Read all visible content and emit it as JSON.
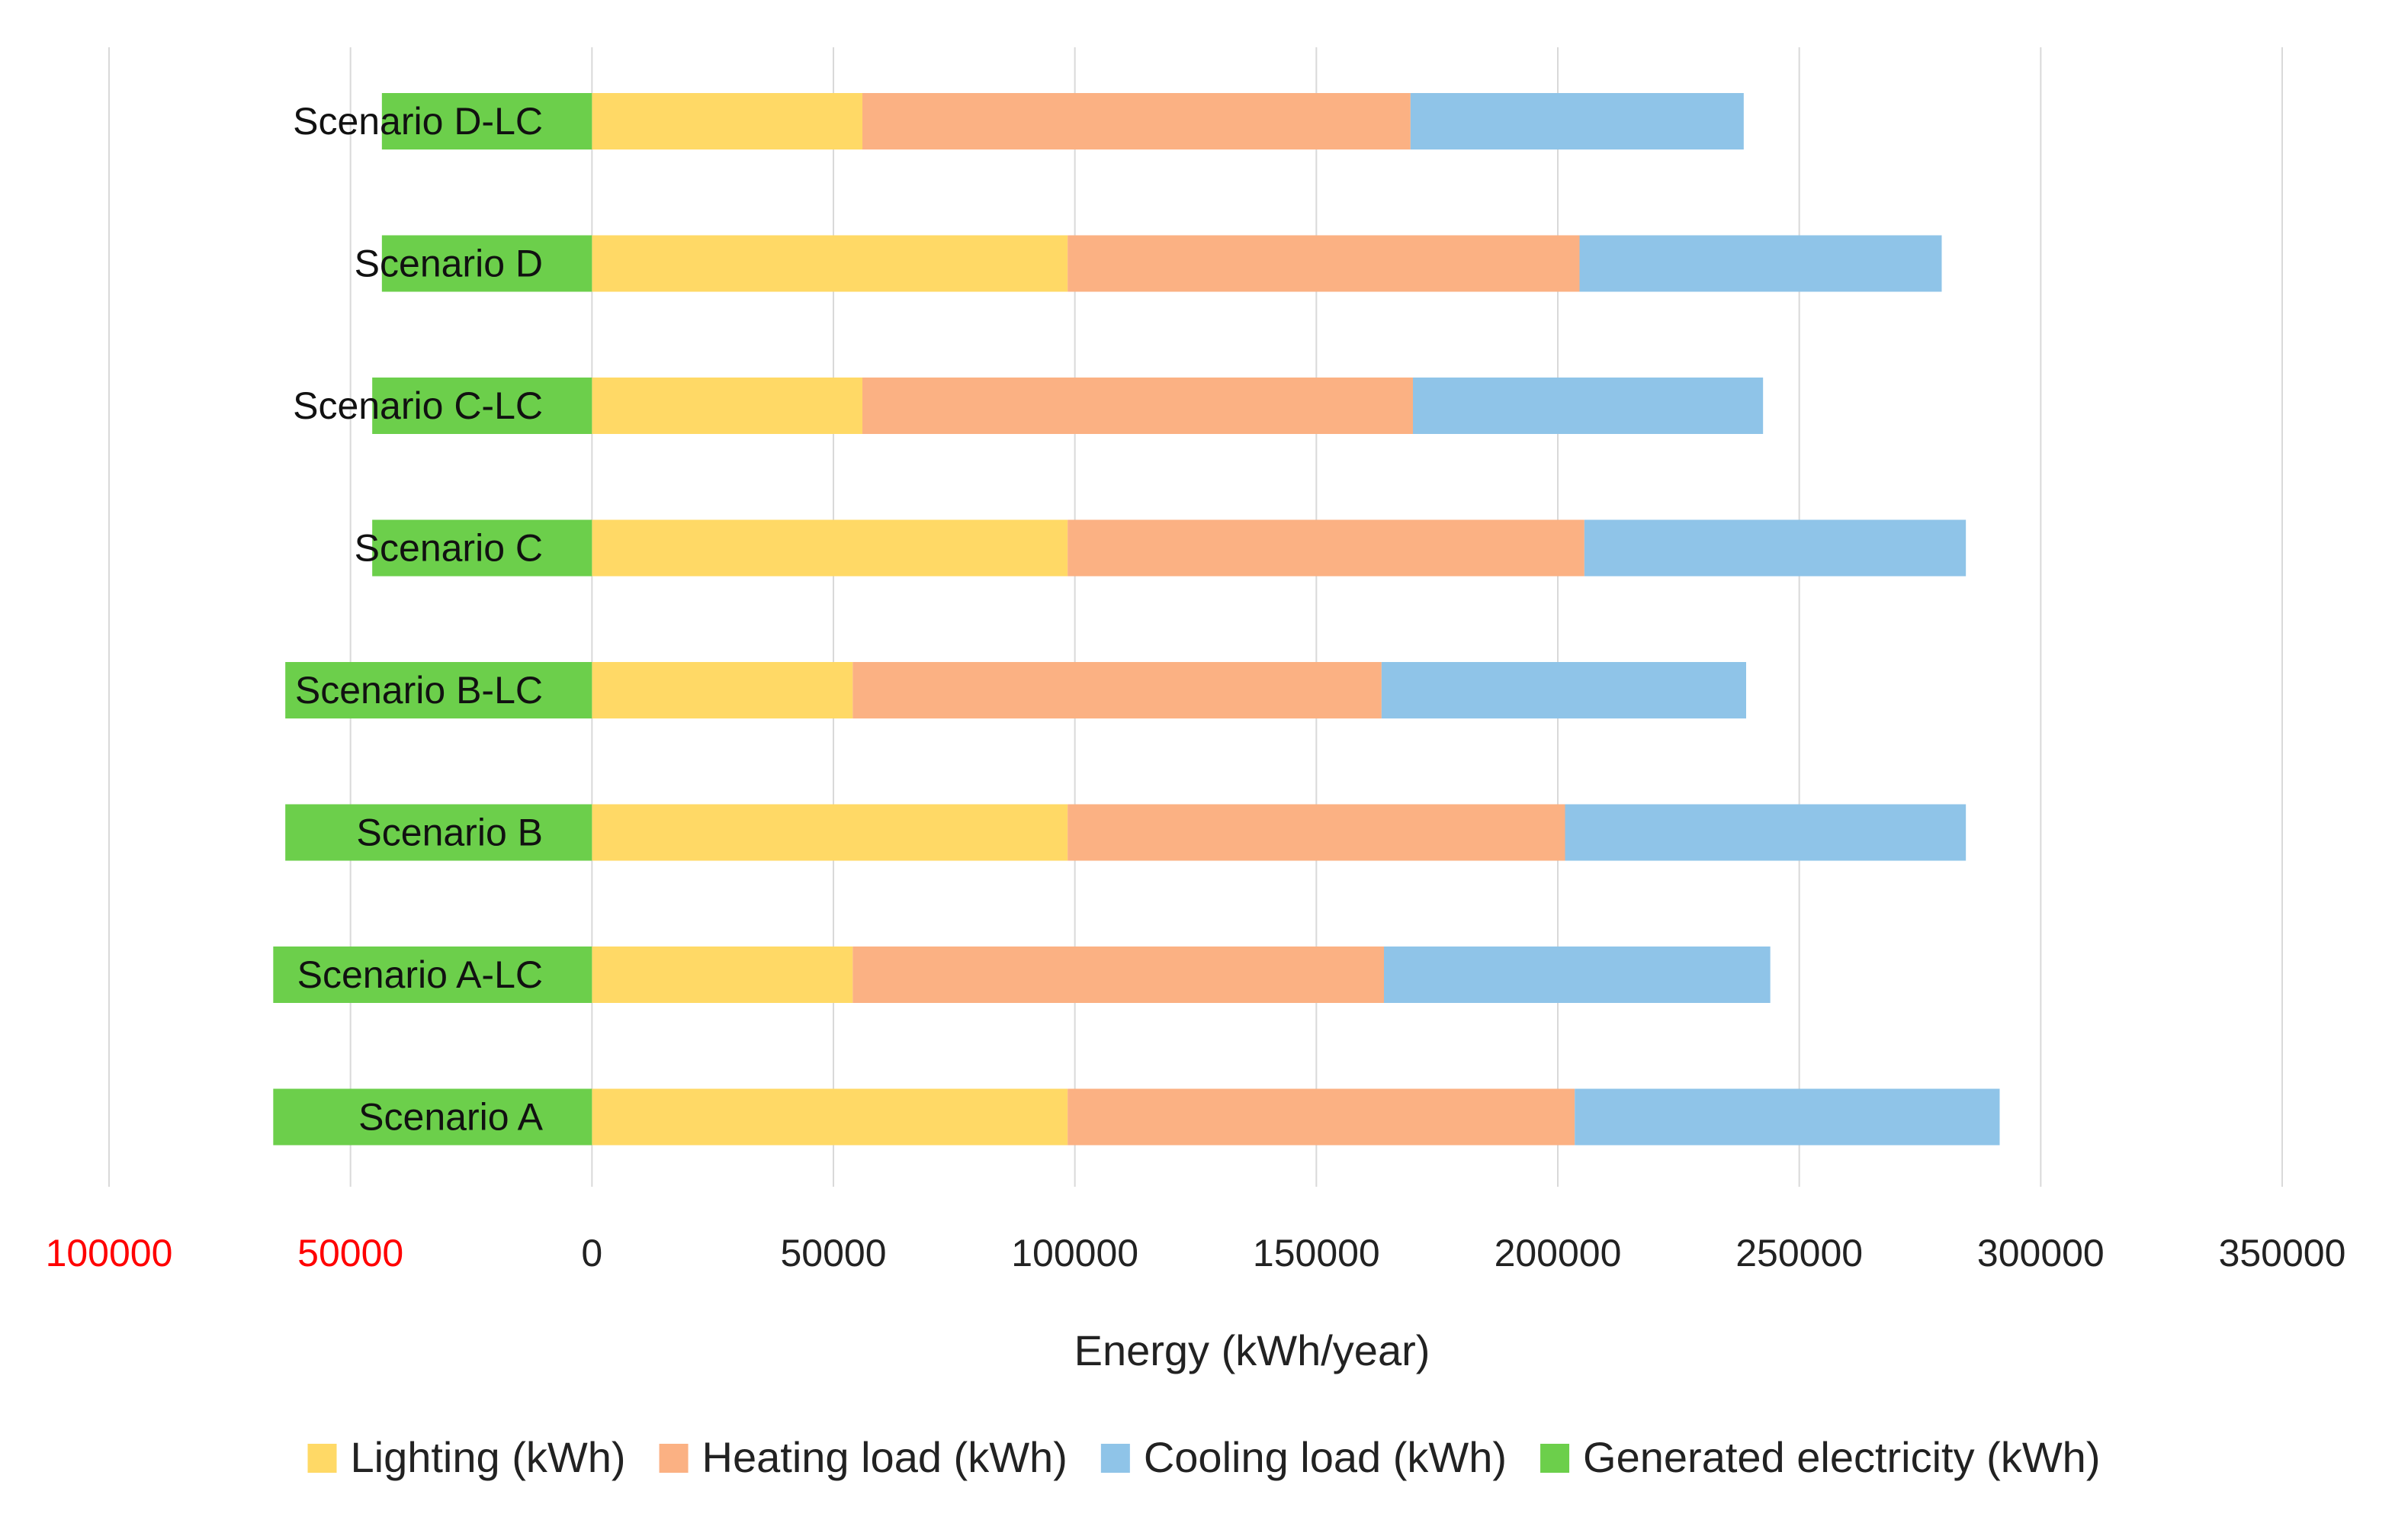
{
  "chart_data": {
    "type": "bar",
    "orientation": "horizontal",
    "stacked": true,
    "title": "",
    "xlabel": "Energy (kWh/year)",
    "ylabel": "",
    "xlim": [
      -100000,
      350000
    ],
    "x_ticks": [
      -100000,
      -50000,
      0,
      50000,
      100000,
      150000,
      200000,
      250000,
      300000,
      350000
    ],
    "x_tick_labels": [
      "100000",
      "50000",
      "0",
      "50000",
      "100000",
      "150000",
      "200000",
      "250000",
      "300000",
      "350000"
    ],
    "negative_tick_color": "#ff0000",
    "grid": true,
    "legend_position": "bottom",
    "categories": [
      "Scenario D-LC",
      "Scenario D",
      "Scenario C-LC",
      "Scenario C",
      "Scenario B-LC",
      "Scenario B",
      "Scenario A-LC",
      "Scenario A"
    ],
    "series": [
      {
        "name": "Lighting (kWh)",
        "color": "#ffd966",
        "values": [
          56000,
          98500,
          56000,
          98500,
          54000,
          98500,
          54000,
          98500
        ]
      },
      {
        "name": "Heating load (kWh)",
        "color": "#fbb183",
        "values": [
          113500,
          106000,
          114000,
          107000,
          109500,
          103000,
          110000,
          105000
        ]
      },
      {
        "name": "Cooling load (kWh)",
        "color": "#8fc4e8",
        "values": [
          69000,
          75000,
          72500,
          79000,
          75500,
          83000,
          80000,
          88000
        ]
      },
      {
        "name": "Generated electricity (kWh)",
        "color": "#6ccf4b",
        "values": [
          -43500,
          -43500,
          -45500,
          -45500,
          -63500,
          -63500,
          -66000,
          -66000
        ]
      }
    ]
  }
}
